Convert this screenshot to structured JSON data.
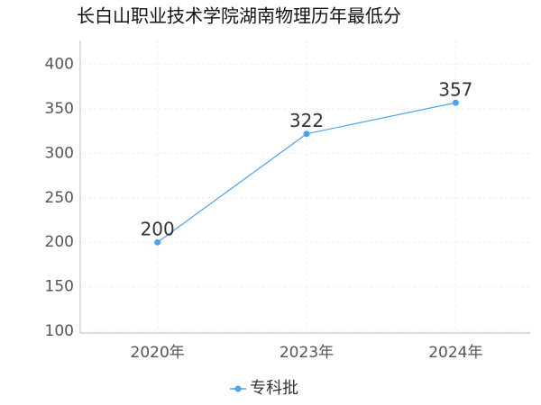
{
  "chart_data": {
    "type": "line",
    "title": "长白山职业技术学院湖南物理历年最低分",
    "categories": [
      "2020年",
      "2023年",
      "2024年"
    ],
    "series": [
      {
        "name": "专科批",
        "color": "#4da3f0",
        "values": [
          200,
          322,
          357
        ]
      }
    ],
    "ylim": [
      100,
      427
    ],
    "yticks": [
      100,
      150,
      200,
      250,
      300,
      350,
      400
    ],
    "grid": true
  }
}
